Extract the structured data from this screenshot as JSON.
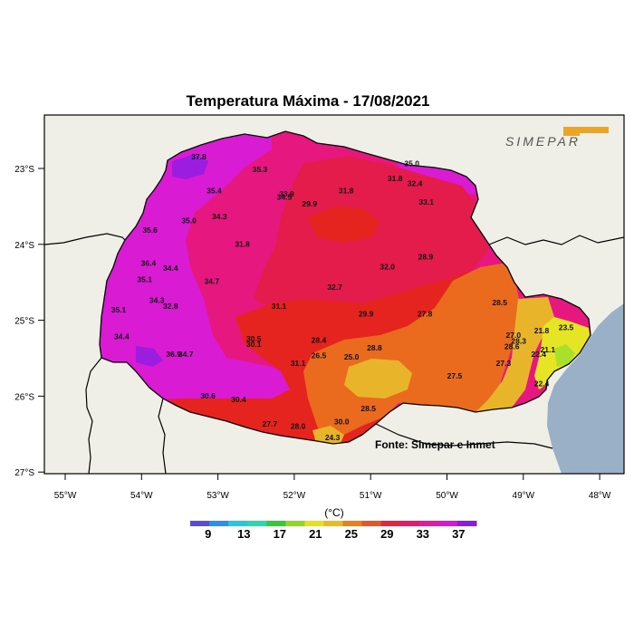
{
  "title": "Temperatura Máxima - 17/08/2021",
  "logo_text": "SIMEPAR",
  "source_text": "Fonte:  Simepar e Inmet",
  "x_ticks": [
    "55°W",
    "54°W",
    "53°W",
    "52°W",
    "51°W",
    "50°W",
    "49°W",
    "48°W"
  ],
  "y_ticks": [
    "23°S",
    "24°S",
    "25°S",
    "26°S",
    "27°S"
  ],
  "legend": {
    "unit": "(°C)",
    "labels": [
      "9",
      "13",
      "17",
      "21",
      "25",
      "29",
      "33",
      "37"
    ],
    "colors": [
      "#5a4bdd",
      "#2f8fe6",
      "#2cc6d8",
      "#2fd7a8",
      "#35c83b",
      "#8fd62a",
      "#e2e025",
      "#e9b82b",
      "#e77f22",
      "#e4572b",
      "#e3253d",
      "#e41b66",
      "#e11b9a",
      "#d21bd1",
      "#8a1be0"
    ]
  },
  "colors": {
    "background": "#efefe7",
    "ocean": "#9ab0c7",
    "t37_plus": "#9b1ddf",
    "t35": "#d91bd3",
    "t33": "#e6177e",
    "t31": "#e41c4c",
    "t29": "#e6241f",
    "t27": "#ea6b1e",
    "t25": "#e8b42a",
    "t23": "#e5e425",
    "t21": "#a8e02a"
  },
  "observations": [
    {
      "label": "37.8",
      "lon": -53.25,
      "lat": -22.88
    },
    {
      "label": "35.3",
      "lon": -52.45,
      "lat": -23.05
    },
    {
      "label": "35.4",
      "lon": -53.05,
      "lat": -23.33
    },
    {
      "label": "33.9",
      "lon": -52.1,
      "lat": -23.37
    },
    {
      "label": "34.5",
      "lon": -52.13,
      "lat": -23.41
    },
    {
      "label": "31.8",
      "lon": -51.32,
      "lat": -23.33
    },
    {
      "label": "31.8",
      "lon": -50.68,
      "lat": -23.17
    },
    {
      "label": "35.0",
      "lon": -50.46,
      "lat": -22.97
    },
    {
      "label": "32.4",
      "lon": -50.42,
      "lat": -23.23
    },
    {
      "label": "33.1",
      "lon": -50.27,
      "lat": -23.48
    },
    {
      "label": "29.9",
      "lon": -51.8,
      "lat": -23.5
    },
    {
      "label": "35.0",
      "lon": -53.38,
      "lat": -23.72
    },
    {
      "label": "34.3",
      "lon": -52.98,
      "lat": -23.67
    },
    {
      "label": "35.6",
      "lon": -53.89,
      "lat": -23.85
    },
    {
      "label": "31.8",
      "lon": -52.68,
      "lat": -24.03
    },
    {
      "label": "36.4",
      "lon": -53.91,
      "lat": -24.28
    },
    {
      "label": "34.4",
      "lon": -53.62,
      "lat": -24.35
    },
    {
      "label": "35.1",
      "lon": -53.96,
      "lat": -24.5
    },
    {
      "label": "34.7",
      "lon": -53.08,
      "lat": -24.52
    },
    {
      "label": "32.0",
      "lon": -50.78,
      "lat": -24.33
    },
    {
      "label": "28.9",
      "lon": -50.28,
      "lat": -24.2
    },
    {
      "label": "32.7",
      "lon": -51.47,
      "lat": -24.6
    },
    {
      "label": "34.3",
      "lon": -53.8,
      "lat": -24.77
    },
    {
      "label": "32.8",
      "lon": -53.62,
      "lat": -24.85
    },
    {
      "label": "31.1",
      "lon": -52.2,
      "lat": -24.85
    },
    {
      "label": "35.1",
      "lon": -54.3,
      "lat": -24.9
    },
    {
      "label": "28.5",
      "lon": -49.31,
      "lat": -24.8
    },
    {
      "label": "29.9",
      "lon": -51.06,
      "lat": -24.95
    },
    {
      "label": "27.8",
      "lon": -50.29,
      "lat": -24.95
    },
    {
      "label": "34.4",
      "lon": -54.26,
      "lat": -25.25
    },
    {
      "label": "30.5",
      "lon": -52.53,
      "lat": -25.28
    },
    {
      "label": "30.1",
      "lon": -52.53,
      "lat": -25.35
    },
    {
      "label": "28.4",
      "lon": -51.68,
      "lat": -25.3
    },
    {
      "label": "28.8",
      "lon": -50.95,
      "lat": -25.4
    },
    {
      "label": "27.0",
      "lon": -49.13,
      "lat": -25.23
    },
    {
      "label": "28.3",
      "lon": -49.06,
      "lat": -25.31
    },
    {
      "label": "28.6",
      "lon": -49.15,
      "lat": -25.38
    },
    {
      "label": "21.8",
      "lon": -48.76,
      "lat": -25.17
    },
    {
      "label": "23.5",
      "lon": -48.44,
      "lat": -25.13
    },
    {
      "label": "21.1",
      "lon": -48.68,
      "lat": -25.42
    },
    {
      "label": "22.4",
      "lon": -48.8,
      "lat": -25.48
    },
    {
      "label": "36.9",
      "lon": -53.58,
      "lat": -25.48
    },
    {
      "label": "34.7",
      "lon": -53.42,
      "lat": -25.48
    },
    {
      "label": "26.5",
      "lon": -51.68,
      "lat": -25.5
    },
    {
      "label": "25.0",
      "lon": -51.25,
      "lat": -25.52
    },
    {
      "label": "31.1",
      "lon": -51.95,
      "lat": -25.6
    },
    {
      "label": "27.3",
      "lon": -49.26,
      "lat": -25.6
    },
    {
      "label": "27.5",
      "lon": -49.9,
      "lat": -25.77
    },
    {
      "label": "22.4",
      "lon": -48.76,
      "lat": -25.87
    },
    {
      "label": "30.6",
      "lon": -53.13,
      "lat": -26.03
    },
    {
      "label": "30.4",
      "lon": -52.73,
      "lat": -26.08
    },
    {
      "label": "28.5",
      "lon": -51.03,
      "lat": -26.2
    },
    {
      "label": "27.7",
      "lon": -52.32,
      "lat": -26.4
    },
    {
      "label": "28.0",
      "lon": -51.95,
      "lat": -26.43
    },
    {
      "label": "30.0",
      "lon": -51.38,
      "lat": -26.37
    },
    {
      "label": "24.3",
      "lon": -51.5,
      "lat": -26.58
    }
  ]
}
